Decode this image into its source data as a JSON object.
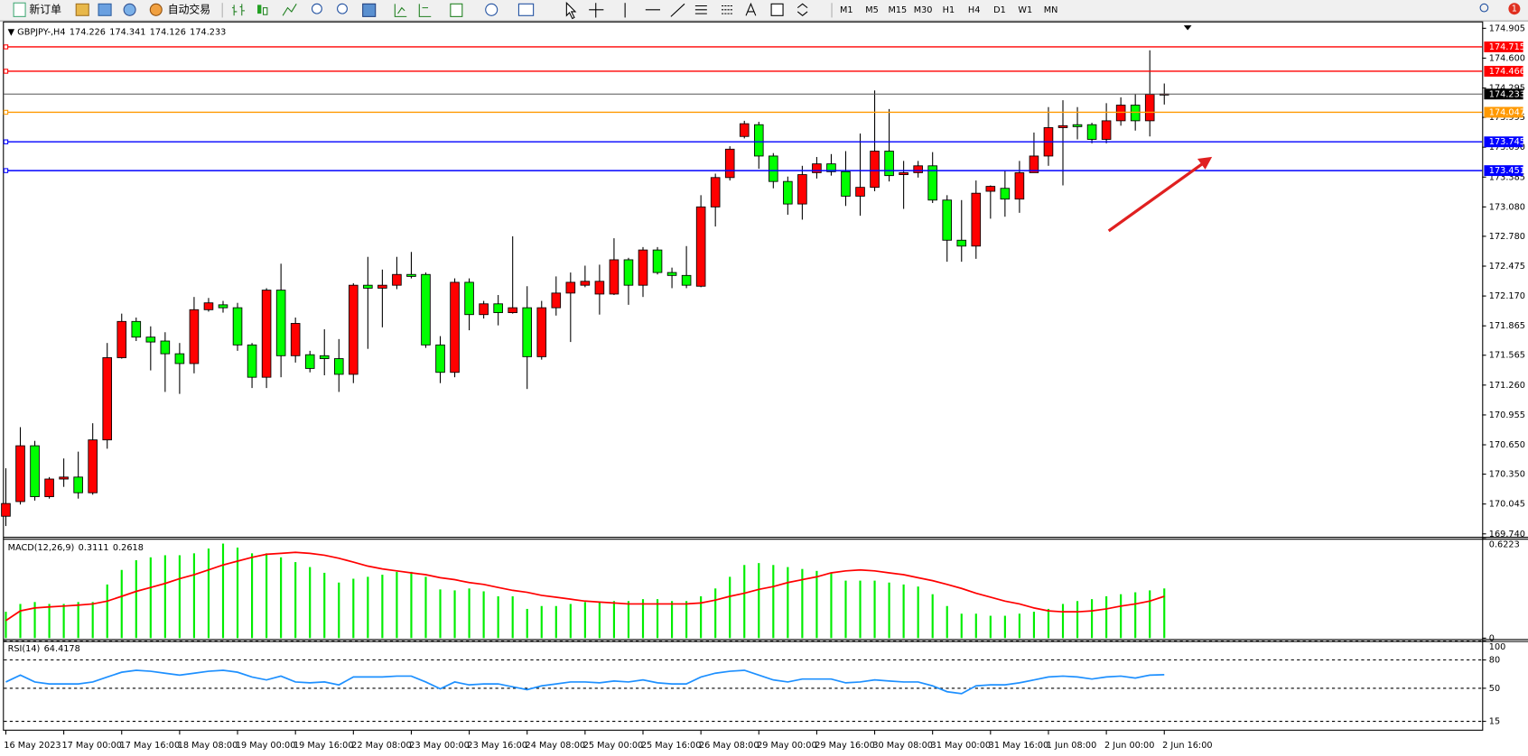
{
  "toolbar": {
    "new_order": "新订单",
    "auto_trading": "自动交易",
    "timeframes": [
      "M1",
      "M5",
      "M15",
      "M30",
      "H1",
      "H4",
      "D1",
      "W1",
      "MN"
    ],
    "notifications": 1
  },
  "chart_data": [
    {
      "type": "candlestick",
      "title": "GBPJPY-,H4",
      "categories": [
        "16 May 2023",
        null,
        null,
        null,
        "17 May 00:00",
        null,
        null,
        null,
        "17 May 16:00",
        null,
        null,
        null,
        "18 May 08:00",
        null,
        null,
        null,
        "19 May 00:00",
        null,
        null,
        null,
        "19 May 16:00",
        null,
        null,
        null,
        "22 May 08:00",
        null,
        null,
        null,
        "23 May 00:00",
        null,
        null,
        null,
        "23 May 16:00",
        null,
        null,
        null,
        "24 May 08:00",
        null,
        null,
        null,
        "25 May 00:00",
        null,
        null,
        null,
        "25 May 16:00",
        null,
        null,
        null,
        "26 May 08:00",
        null,
        null,
        null,
        "29 May 00:00",
        null,
        null,
        null,
        "29 May 16:00",
        null,
        null,
        null,
        "30 May 08:00",
        null,
        null,
        null,
        "31 May 00:00",
        null,
        null,
        null,
        "31 May 16:00",
        null,
        null,
        null,
        "1 Jun 08:00",
        null,
        null,
        null,
        "2 Jun 00:00",
        null,
        null,
        null,
        "2 Jun 16:00"
      ],
      "open": [
        169.92,
        170.07,
        170.64,
        170.12,
        170.3,
        170.32,
        170.16,
        170.7,
        171.54,
        171.91,
        171.75,
        171.71,
        171.58,
        171.48,
        172.03,
        172.08,
        172.05,
        171.67,
        171.34,
        172.23,
        171.56,
        171.57,
        171.56,
        171.53,
        171.37,
        172.28,
        172.25,
        172.28,
        172.39,
        172.39,
        171.67,
        171.39,
        172.31,
        171.98,
        172.09,
        172.0,
        172.05,
        171.55,
        172.05,
        172.2,
        172.28,
        172.19,
        172.19,
        172.54,
        172.28,
        172.64,
        172.41,
        172.38,
        172.27,
        173.08,
        173.38,
        173.8,
        173.92,
        173.6,
        173.34,
        173.11,
        173.43,
        173.52,
        173.44,
        173.19,
        173.28,
        173.65,
        173.41,
        173.43,
        173.5,
        173.15,
        172.74,
        172.68,
        173.24,
        173.27,
        173.16,
        173.43,
        173.6,
        173.89,
        173.92,
        173.92,
        173.77,
        173.96,
        174.12,
        173.96,
        174.226
      ],
      "high": [
        170.41,
        170.83,
        170.69,
        170.32,
        170.51,
        170.58,
        170.87,
        171.69,
        171.99,
        171.95,
        171.86,
        171.8,
        171.69,
        172.16,
        172.15,
        172.12,
        172.1,
        171.69,
        172.25,
        172.5,
        171.95,
        171.61,
        171.83,
        171.73,
        172.3,
        172.57,
        172.44,
        172.57,
        172.62,
        172.41,
        171.76,
        172.35,
        172.35,
        172.12,
        172.18,
        172.78,
        172.27,
        172.12,
        172.37,
        172.41,
        172.48,
        172.49,
        172.76,
        172.56,
        172.67,
        172.67,
        172.46,
        172.68,
        173.2,
        173.42,
        173.7,
        173.96,
        173.95,
        173.63,
        173.39,
        173.5,
        173.59,
        173.62,
        173.65,
        173.83,
        174.27,
        174.08,
        173.55,
        173.55,
        173.64,
        173.2,
        173.15,
        173.35,
        173.3,
        173.45,
        173.55,
        173.84,
        174.1,
        174.17,
        174.1,
        173.94,
        174.14,
        174.2,
        174.23,
        174.68,
        174.341
      ],
      "low": [
        169.82,
        170.04,
        170.08,
        170.1,
        170.22,
        170.1,
        170.14,
        170.61,
        171.53,
        171.71,
        171.41,
        171.19,
        171.17,
        171.38,
        172.01,
        172.0,
        171.61,
        171.23,
        171.23,
        171.34,
        171.49,
        171.39,
        171.36,
        171.19,
        171.28,
        171.63,
        171.85,
        172.24,
        172.35,
        171.64,
        171.28,
        171.34,
        171.82,
        171.94,
        171.87,
        171.99,
        171.22,
        171.52,
        171.97,
        171.7,
        172.26,
        171.98,
        172.18,
        172.08,
        172.16,
        172.39,
        172.25,
        172.25,
        172.26,
        172.88,
        173.35,
        173.78,
        173.47,
        173.27,
        173.0,
        172.95,
        173.37,
        173.4,
        173.09,
        172.99,
        173.24,
        173.34,
        173.06,
        173.38,
        173.12,
        172.52,
        172.52,
        172.55,
        172.96,
        172.98,
        173.02,
        173.43,
        173.5,
        173.3,
        173.77,
        173.73,
        173.73,
        173.91,
        173.86,
        173.8,
        174.126
      ],
      "close": [
        170.05,
        170.64,
        170.12,
        170.3,
        170.32,
        170.16,
        170.7,
        171.54,
        171.91,
        171.75,
        171.7,
        171.58,
        171.48,
        172.03,
        172.1,
        172.05,
        171.67,
        171.34,
        172.23,
        171.56,
        171.89,
        171.43,
        171.53,
        171.37,
        172.28,
        172.25,
        172.28,
        172.39,
        172.37,
        171.67,
        171.39,
        172.31,
        171.98,
        172.09,
        172.0,
        172.05,
        171.55,
        172.05,
        172.2,
        172.31,
        172.32,
        172.32,
        172.54,
        172.28,
        172.64,
        172.41,
        172.38,
        172.28,
        173.08,
        173.38,
        173.67,
        173.93,
        173.6,
        173.34,
        173.11,
        173.41,
        173.52,
        173.44,
        173.19,
        173.28,
        173.65,
        173.4,
        173.43,
        173.5,
        173.15,
        172.74,
        172.68,
        173.22,
        173.29,
        173.16,
        173.43,
        173.6,
        173.89,
        173.91,
        173.9,
        173.77,
        173.96,
        174.12,
        173.96,
        174.23,
        174.233
      ],
      "up_color": "#ff0000",
      "down_color": "#00ff00",
      "ylim": [
        169.71,
        174.975
      ],
      "yticks": [
        174.905,
        {
          "value": 174.6,
          "label": "174.600"
        },
        174.295,
        173.995,
        {
          "value": 173.69,
          "label": "173.690"
        },
        173.385,
        {
          "value": 173.08,
          "label": "173.080"
        },
        {
          "value": 172.78,
          "label": "172.780"
        },
        172.475,
        {
          "value": 172.17,
          "label": "172.170"
        },
        171.865,
        171.565,
        {
          "value": 171.26,
          "label": "171.260"
        },
        170.955,
        {
          "value": 170.65,
          "label": "170.650"
        },
        {
          "value": 170.35,
          "label": "170.350"
        },
        170.045,
        {
          "value": 169.74,
          "label": "169.740"
        }
      ],
      "levels": [
        {
          "value": 174.715,
          "color": "#ff0000"
        },
        {
          "value": 174.466,
          "color": "#ff0000"
        },
        {
          "value": 174.047,
          "color": "#ff9900"
        },
        {
          "value": 173.745,
          "color": "#0000ff"
        },
        {
          "value": 173.451,
          "color": "#0000ff"
        }
      ]
    },
    {
      "type": "macd",
      "title": "MACD(12,26,9)",
      "series": [
        {
          "type": "bar",
          "color": "#00ee00",
          "values": [
            0.165,
            0.214,
            0.226,
            0.214,
            0.214,
            0.226,
            0.226,
            0.336,
            0.427,
            0.488,
            0.506,
            0.519,
            0.519,
            0.531,
            0.561,
            0.592,
            0.567,
            0.531,
            0.531,
            0.506,
            0.476,
            0.445,
            0.409,
            0.348,
            0.372,
            0.384,
            0.397,
            0.415,
            0.415,
            0.384,
            0.305,
            0.299,
            0.311,
            0.293,
            0.262,
            0.262,
            0.183,
            0.201,
            0.201,
            0.214,
            0.226,
            0.226,
            0.232,
            0.232,
            0.244,
            0.244,
            0.232,
            0.232,
            0.262,
            0.311,
            0.384,
            0.458,
            0.47,
            0.458,
            0.445,
            0.433,
            0.421,
            0.409,
            0.36,
            0.36,
            0.36,
            0.348,
            0.336,
            0.323,
            0.275,
            0.201,
            0.153,
            0.153,
            0.14,
            0.14,
            0.153,
            0.165,
            0.183,
            0.214,
            0.232,
            0.244,
            0.262,
            0.275,
            0.287,
            0.299,
            0.3111
          ]
        },
        {
          "type": "line",
          "color": "#ff0000",
          "values": [
            0.11,
            0.171,
            0.189,
            0.195,
            0.201,
            0.207,
            0.214,
            0.232,
            0.262,
            0.293,
            0.317,
            0.342,
            0.372,
            0.397,
            0.427,
            0.458,
            0.482,
            0.506,
            0.525,
            0.531,
            0.537,
            0.531,
            0.519,
            0.5,
            0.476,
            0.451,
            0.433,
            0.421,
            0.409,
            0.397,
            0.378,
            0.366,
            0.348,
            0.336,
            0.317,
            0.299,
            0.287,
            0.268,
            0.256,
            0.244,
            0.232,
            0.226,
            0.22,
            0.214,
            0.214,
            0.214,
            0.214,
            0.214,
            0.22,
            0.238,
            0.262,
            0.281,
            0.305,
            0.323,
            0.348,
            0.366,
            0.384,
            0.409,
            0.421,
            0.427,
            0.421,
            0.409,
            0.397,
            0.378,
            0.36,
            0.336,
            0.311,
            0.281,
            0.256,
            0.232,
            0.214,
            0.189,
            0.171,
            0.165,
            0.165,
            0.171,
            0.183,
            0.201,
            0.214,
            0.232,
            0.2618
          ]
        }
      ],
      "ylim": [
        0,
        0.6223
      ],
      "yticks": [
        0.6223,
        0
      ]
    },
    {
      "type": "line",
      "title": "RSI(14)",
      "color": "#1e90ff",
      "values": [
        56.7,
        63.9,
        56.7,
        54.6,
        54.6,
        54.6,
        56.7,
        61.9,
        67.0,
        69.1,
        68.0,
        66.0,
        63.9,
        66.0,
        68.0,
        69.1,
        67.0,
        61.9,
        58.8,
        62.9,
        56.7,
        55.7,
        56.7,
        53.6,
        61.9,
        61.9,
        61.9,
        62.9,
        62.9,
        56.7,
        49.5,
        56.7,
        53.6,
        54.6,
        54.6,
        51.5,
        48.5,
        52.6,
        54.6,
        56.7,
        56.7,
        55.7,
        57.7,
        56.7,
        58.8,
        55.7,
        54.6,
        54.6,
        61.9,
        66.0,
        68.0,
        69.1,
        63.9,
        58.8,
        56.7,
        59.8,
        59.8,
        59.8,
        55.7,
        56.7,
        58.8,
        57.7,
        56.7,
        56.7,
        52.6,
        46.4,
        44.3,
        52.6,
        53.6,
        53.6,
        55.7,
        58.8,
        61.9,
        62.9,
        61.9,
        59.8,
        61.9,
        62.9,
        60.8,
        63.9,
        64.4178
      ],
      "ylim": [
        8.2,
        100
      ],
      "yticks": [
        100,
        80,
        50,
        15
      ],
      "grid": "dashed"
    }
  ]
}
